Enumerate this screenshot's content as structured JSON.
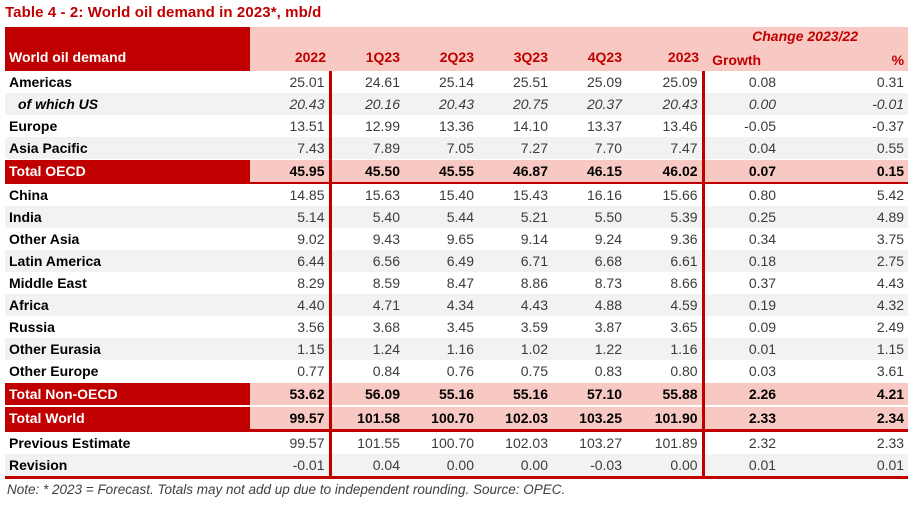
{
  "title": "Table 4 - 2: World oil demand in 2023*, mb/d",
  "note": "Note: * 2023 = Forecast. Totals may not add up due to independent rounding. Source: OPEC.",
  "colors": {
    "dark_red": "#C00000",
    "band_pink": "#F8C8C3",
    "stripe_gray": "#F2F2F2",
    "number_text": "#3B3B3B",
    "note_text": "#404040"
  },
  "table": {
    "header": {
      "label": "World oil demand",
      "change_group": "Change 2023/22",
      "columns": [
        "2022",
        "1Q23",
        "2Q23",
        "3Q23",
        "4Q23",
        "2023",
        "Growth",
        "%"
      ]
    },
    "rows": [
      {
        "label": "Americas",
        "style": "",
        "values": [
          "25.01",
          "24.61",
          "25.14",
          "25.51",
          "25.09",
          "25.09",
          "0.08",
          "0.31"
        ]
      },
      {
        "label": "of which US",
        "style": "italic shaded",
        "values": [
          "20.43",
          "20.16",
          "20.43",
          "20.75",
          "20.37",
          "20.43",
          "0.00",
          "-0.01"
        ]
      },
      {
        "label": "Europe",
        "style": "",
        "values": [
          "13.51",
          "12.99",
          "13.36",
          "14.10",
          "13.37",
          "13.46",
          "-0.05",
          "-0.37"
        ]
      },
      {
        "label": "Asia Pacific",
        "style": "shaded",
        "values": [
          "7.43",
          "7.89",
          "7.05",
          "7.27",
          "7.70",
          "7.47",
          "0.04",
          "0.55"
        ]
      },
      {
        "label": "Total OECD",
        "style": "total divider-thin",
        "values": [
          "45.95",
          "45.50",
          "45.55",
          "46.87",
          "46.15",
          "46.02",
          "0.07",
          "0.15"
        ]
      },
      {
        "label": "China",
        "style": "",
        "values": [
          "14.85",
          "15.63",
          "15.40",
          "15.43",
          "16.16",
          "15.66",
          "0.80",
          "5.42"
        ]
      },
      {
        "label": "India",
        "style": "shaded",
        "values": [
          "5.14",
          "5.40",
          "5.44",
          "5.21",
          "5.50",
          "5.39",
          "0.25",
          "4.89"
        ]
      },
      {
        "label": "Other Asia",
        "style": "",
        "values": [
          "9.02",
          "9.43",
          "9.65",
          "9.14",
          "9.24",
          "9.36",
          "0.34",
          "3.75"
        ]
      },
      {
        "label": "Latin America",
        "style": "shaded",
        "values": [
          "6.44",
          "6.56",
          "6.49",
          "6.71",
          "6.68",
          "6.61",
          "0.18",
          "2.75"
        ]
      },
      {
        "label": "Middle East",
        "style": "",
        "values": [
          "8.29",
          "8.59",
          "8.47",
          "8.86",
          "8.73",
          "8.66",
          "0.37",
          "4.43"
        ]
      },
      {
        "label": "Africa",
        "style": "shaded",
        "values": [
          "4.40",
          "4.71",
          "4.34",
          "4.43",
          "4.88",
          "4.59",
          "0.19",
          "4.32"
        ]
      },
      {
        "label": "Russia",
        "style": "",
        "values": [
          "3.56",
          "3.68",
          "3.45",
          "3.59",
          "3.87",
          "3.65",
          "0.09",
          "2.49"
        ]
      },
      {
        "label": "Other Eurasia",
        "style": "shaded",
        "values": [
          "1.15",
          "1.24",
          "1.16",
          "1.02",
          "1.22",
          "1.16",
          "0.01",
          "1.15"
        ]
      },
      {
        "label": "Other Europe",
        "style": "",
        "values": [
          "0.77",
          "0.84",
          "0.76",
          "0.75",
          "0.83",
          "0.80",
          "0.03",
          "3.61"
        ]
      },
      {
        "label": "Total Non-OECD",
        "style": "total",
        "values": [
          "53.62",
          "56.09",
          "55.16",
          "55.16",
          "57.10",
          "55.88",
          "2.26",
          "4.21"
        ]
      },
      {
        "label": "Total World",
        "style": "total gap-above divider-thick",
        "values": [
          "99.57",
          "101.58",
          "100.70",
          "102.03",
          "103.25",
          "101.90",
          "2.33",
          "2.34"
        ]
      },
      {
        "label": "Previous Estimate",
        "style": "",
        "values": [
          "99.57",
          "101.55",
          "100.70",
          "102.03",
          "103.27",
          "101.89",
          "2.32",
          "2.33"
        ]
      },
      {
        "label": "Revision",
        "style": "shaded divider-thick",
        "values": [
          "-0.01",
          "0.04",
          "0.00",
          "0.00",
          "-0.03",
          "0.00",
          "0.01",
          "0.01"
        ]
      }
    ]
  }
}
